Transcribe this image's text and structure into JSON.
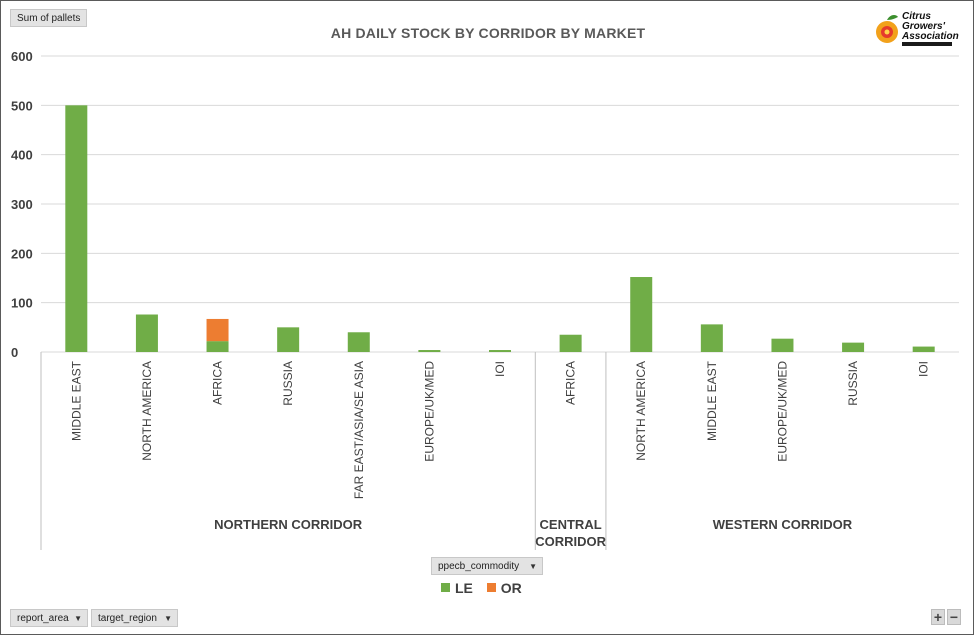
{
  "value_field_button": "Sum of pallets",
  "filter_buttons": [
    "report_area",
    "target_region"
  ],
  "legend_field_button": "ppecb_commodity",
  "logo": {
    "line1": "Citrus",
    "line2": "Growers'",
    "line3": "Association"
  },
  "zoom": {
    "plus": "+",
    "minus": "−"
  },
  "colors": {
    "LE": "#70ad47",
    "OR": "#ed7d31",
    "grid": "#d9d9d9",
    "axis": "#bfbfbf"
  },
  "chart_data": {
    "type": "bar",
    "stacked": true,
    "title": "AH DAILY STOCK BY CORRIDOR BY MARKET",
    "ylim": [
      0,
      600
    ],
    "yticks": [
      0,
      100,
      200,
      300,
      400,
      500,
      600
    ],
    "grid": true,
    "legend_position": "bottom",
    "groups": [
      {
        "label": "NORTHERN CORRIDOR",
        "categories": [
          "MIDDLE EAST",
          "NORTH AMERICA",
          "AFRICA",
          "RUSSIA",
          "FAR EAST/ASIA/SE ASIA",
          "EUROPE/UK/MED",
          "IOI"
        ]
      },
      {
        "label": "CENTRAL CORRIDOR",
        "categories": [
          "AFRICA"
        ]
      },
      {
        "label": "WESTERN CORRIDOR",
        "categories": [
          "NORTH AMERICA",
          "MIDDLE EAST",
          "EUROPE/UK/MED",
          "RUSSIA",
          "IOI"
        ]
      }
    ],
    "categories": [
      "MIDDLE EAST",
      "NORTH AMERICA",
      "AFRICA",
      "RUSSIA",
      "FAR EAST/ASIA/SE ASIA",
      "EUROPE/UK/MED",
      "IOI",
      "AFRICA",
      "NORTH AMERICA",
      "MIDDLE EAST",
      "EUROPE/UK/MED",
      "RUSSIA",
      "IOI"
    ],
    "series": [
      {
        "name": "LE",
        "values": [
          500,
          76,
          22,
          50,
          40,
          4,
          4,
          35,
          152,
          56,
          27,
          19,
          11
        ]
      },
      {
        "name": "OR",
        "values": [
          0,
          0,
          45,
          0,
          0,
          0,
          0,
          0,
          0,
          0,
          0,
          0,
          0
        ]
      }
    ]
  }
}
